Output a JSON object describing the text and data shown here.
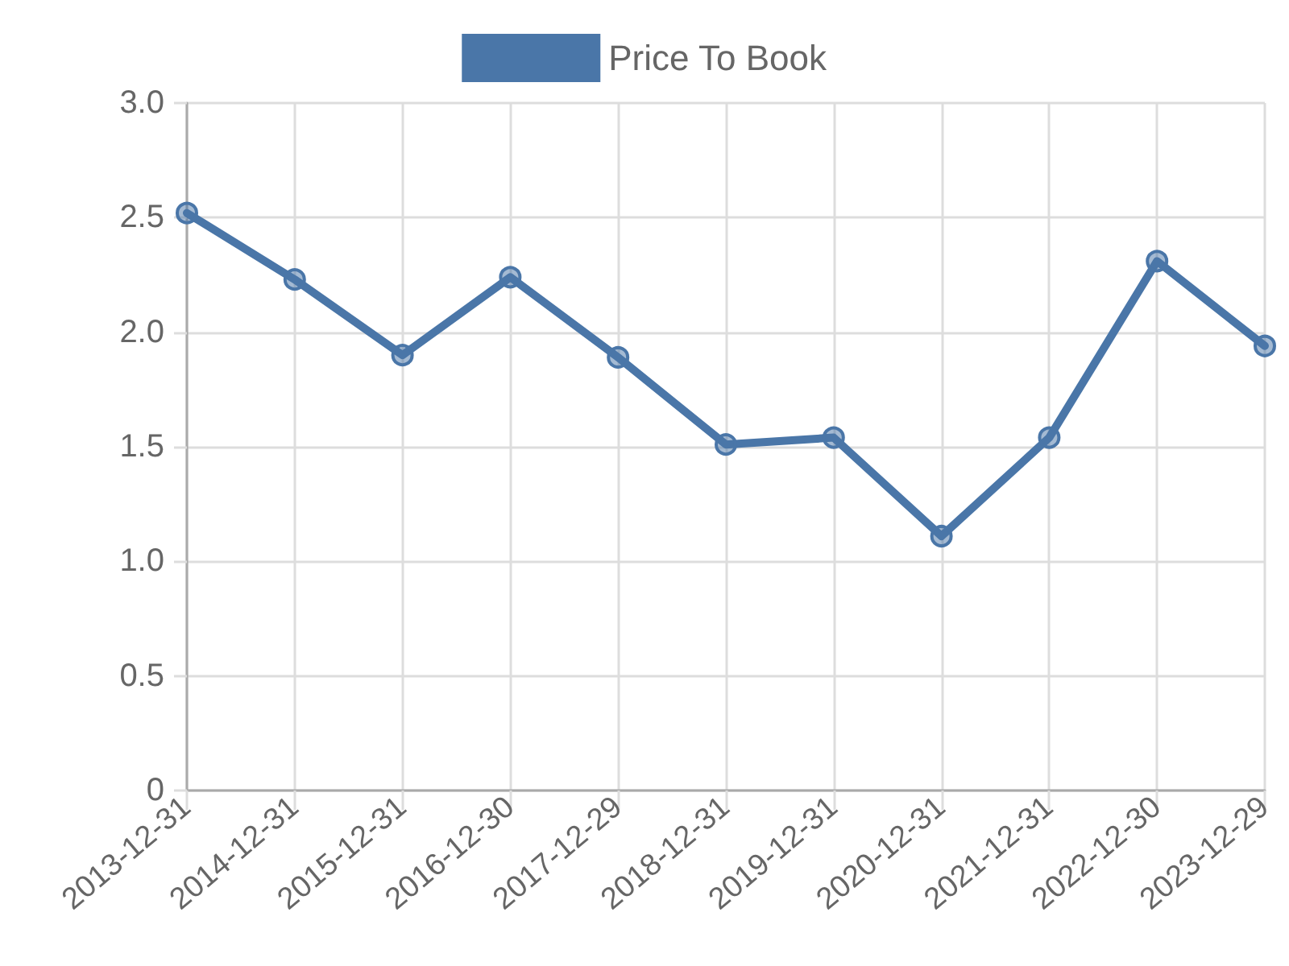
{
  "chart_data": {
    "type": "line",
    "categories": [
      "2013-12-31",
      "2014-12-31",
      "2015-12-31",
      "2016-12-30",
      "2017-12-29",
      "2018-12-31",
      "2019-12-31",
      "2020-12-31",
      "2021-12-31",
      "2022-12-30",
      "2023-12-29"
    ],
    "series": [
      {
        "name": "Price To Book",
        "color": "#4a76a8",
        "values": [
          2.52,
          2.23,
          1.9,
          2.24,
          1.89,
          1.51,
          1.54,
          1.11,
          1.54,
          2.31,
          1.94
        ]
      }
    ],
    "ylim": [
      0,
      3
    ],
    "yticks": [
      0,
      0.5,
      {
        "value": 1,
        "label": "1.0"
      },
      1.5,
      {
        "value": 2,
        "label": "2.0"
      },
      2.5,
      {
        "value": 3,
        "label": "3.0"
      }
    ],
    "grid": true,
    "legend": "top",
    "marker": "circle",
    "line_style": "solid"
  }
}
